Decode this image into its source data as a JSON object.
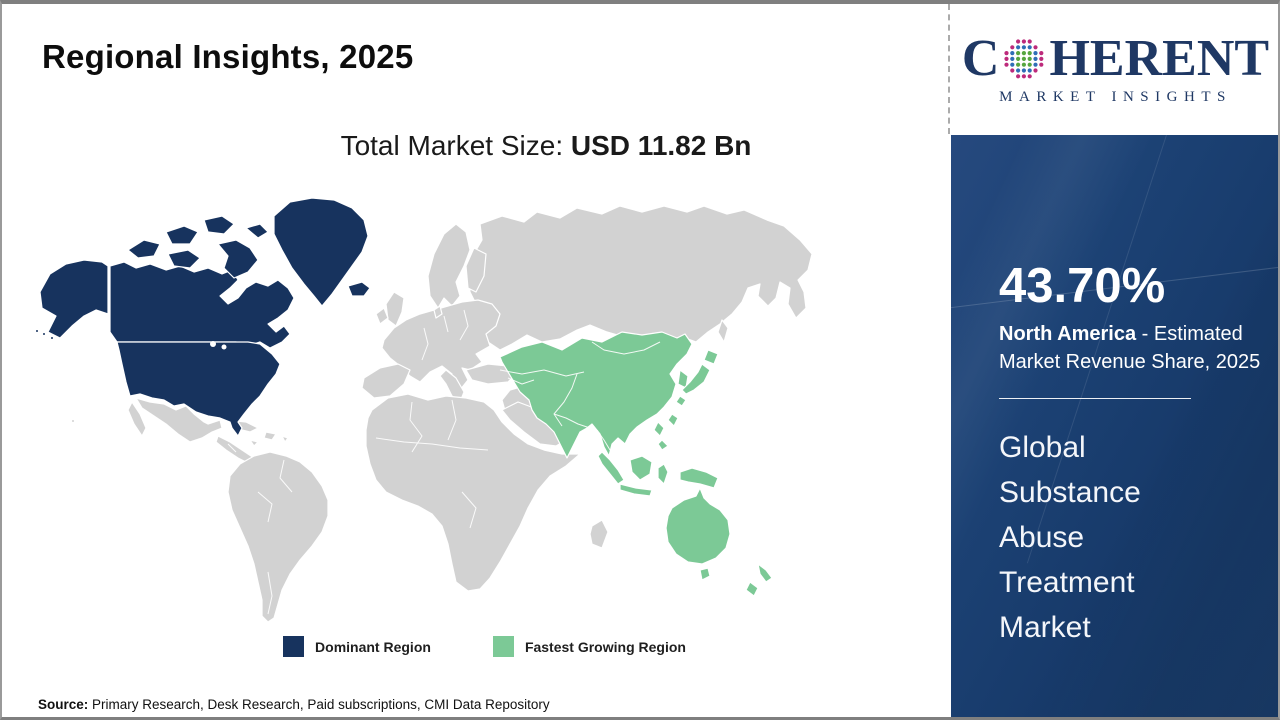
{
  "header": {
    "title": "Regional Insights, 2025"
  },
  "logo": {
    "prefix": "C",
    "suffix": "HERENT",
    "tagline": "MARKET INSIGHTS"
  },
  "market_size": {
    "label": "Total Market Size: ",
    "value": "USD 11.82 Bn"
  },
  "legend": {
    "items": [
      {
        "label": "Dominant Region",
        "key": "dominant"
      },
      {
        "label": "Fastest Growing Region",
        "key": "fastest"
      }
    ]
  },
  "map_data": {
    "type": "choropleth",
    "regions": [
      {
        "name": "North America",
        "status": "Dominant Region",
        "share_2025": "43.70%"
      },
      {
        "name": "Asia Pacific",
        "status": "Fastest Growing Region"
      }
    ]
  },
  "sidebar": {
    "share_value": "43.70%",
    "share_region": "North America",
    "share_suffix": " - Estimated Market Revenue Share, 2025",
    "report_title": "Global Substance Abuse Treatment Market"
  },
  "source": {
    "label": "Source:",
    "text": " Primary Research, Desk Research, Paid subscriptions, CMI Data Repository"
  },
  "colors": {
    "dominant": "#17335e",
    "fastest": "#7cc996",
    "land": "#d2d2d2",
    "stroke": "#ffffff",
    "brand_navy": "#1f3864",
    "logo_green": "#56a63f",
    "logo_blue": "#2f6eb6",
    "logo_magenta": "#bd2a7b"
  }
}
